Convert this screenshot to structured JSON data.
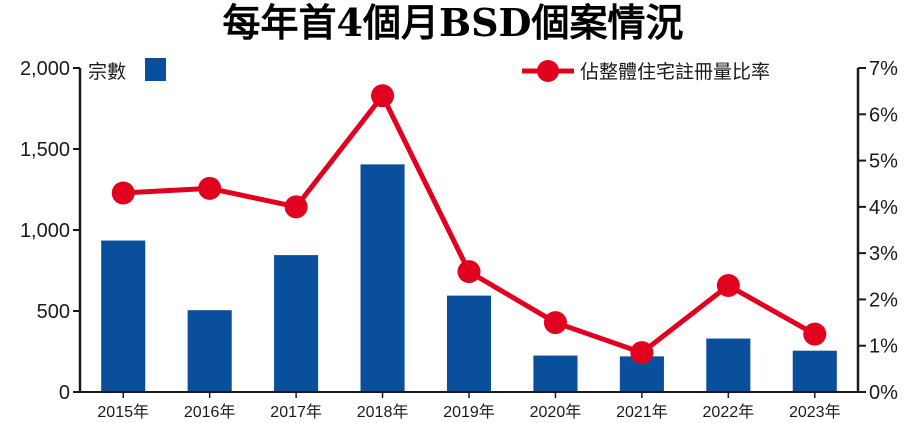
{
  "colors": {
    "title": "#1f7fc4",
    "bar": "#0a4f9c",
    "line": "#e1001e",
    "axis": "#1a1a1a"
  },
  "chart_data": {
    "type": "bar",
    "title": "每年首4個月BSD個案情況",
    "categories": [
      "2015年",
      "2016年",
      "2017年",
      "2018年",
      "2019年",
      "2020年",
      "2021年",
      "2022年",
      "2023年"
    ],
    "series": [
      {
        "name": "宗數",
        "type": "bar",
        "axis": "left",
        "values": [
          935,
          505,
          845,
          1405,
          595,
          225,
          220,
          330,
          255
        ]
      },
      {
        "name": "佔整體住宅註冊量比率",
        "type": "line",
        "axis": "right",
        "values": [
          4.3,
          4.4,
          4.0,
          6.4,
          2.6,
          1.5,
          0.85,
          2.3,
          1.25
        ]
      }
    ],
    "y_left": {
      "min": 0,
      "max": 2000,
      "ticks": [
        "0",
        "500",
        "1,000",
        "1,500",
        "2,000"
      ],
      "tick_values": [
        0,
        500,
        1000,
        1500,
        2000
      ]
    },
    "y_right": {
      "min": 0,
      "max": 7,
      "ticks": [
        "0%",
        "1%",
        "2%",
        "3%",
        "4%",
        "5%",
        "6%",
        "7%"
      ],
      "tick_values": [
        0,
        1,
        2,
        3,
        4,
        5,
        6,
        7
      ]
    },
    "grid": false,
    "legend_placement": "top"
  }
}
